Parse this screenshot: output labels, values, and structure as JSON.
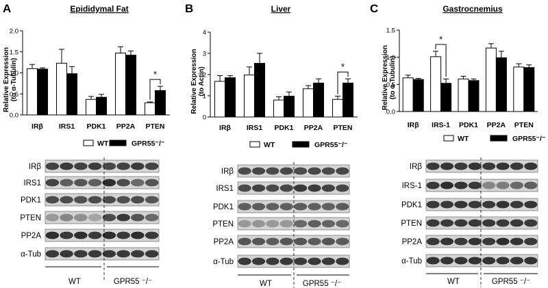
{
  "legend": {
    "wt": "WT",
    "ko": "GPR55⁻/⁻",
    "wt_color": "#ffffff",
    "ko_color": "#000000"
  },
  "chart_data": [
    {
      "type": "bar",
      "letter": "A",
      "title": "Epididymal Fat",
      "ylabel": [
        "Relative Expression",
        "(to α-Tubulin)"
      ],
      "ylim": [
        0,
        2.0
      ],
      "yticks": [
        "0.0",
        "0.5",
        "1.0",
        "1.5",
        "2.0"
      ],
      "categories": [
        "IRβ",
        "IRS1",
        "PDK1",
        "PP2A",
        "PTEN"
      ],
      "series": [
        {
          "name": "WT",
          "values": [
            1.1,
            1.23,
            0.37,
            1.47,
            0.29
          ],
          "errors": [
            0.1,
            0.33,
            0.07,
            0.15,
            0.02
          ]
        },
        {
          "name": "GPR55⁻/⁻",
          "values": [
            1.09,
            0.98,
            0.42,
            1.42,
            0.58
          ],
          "errors": [
            0.03,
            0.17,
            0.07,
            0.1,
            0.1
          ]
        }
      ],
      "significance": [
        {
          "category": "PTEN",
          "label": "*"
        }
      ],
      "blot": {
        "rows": [
          "IRβ",
          "IRS1",
          "PDK1",
          "PTEN",
          "PP2A",
          "α-Tub"
        ],
        "groups": [
          "WT",
          "GPR55 ⁻/⁻"
        ],
        "intensities": [
          [
            0.75,
            0.8,
            0.75,
            0.78,
            0.72,
            0.75,
            0.78,
            0.74
          ],
          [
            0.75,
            0.6,
            0.65,
            0.6,
            0.85,
            0.7,
            0.55,
            0.65
          ],
          [
            0.7,
            0.7,
            0.68,
            0.7,
            0.7,
            0.68,
            0.7,
            0.65
          ],
          [
            0.3,
            0.4,
            0.35,
            0.25,
            0.7,
            0.8,
            0.65,
            0.55
          ],
          [
            0.85,
            0.8,
            0.85,
            0.8,
            0.85,
            0.8,
            0.85,
            0.8
          ],
          [
            0.8,
            0.8,
            0.8,
            0.8,
            0.8,
            0.8,
            0.8,
            0.8
          ]
        ]
      }
    },
    {
      "type": "bar",
      "letter": "B",
      "title": "Liver",
      "ylabel": [
        "Relative Expression",
        "(to Actin)"
      ],
      "ylim": [
        0,
        4
      ],
      "yticks": [
        "0",
        "1",
        "2",
        "3",
        "4"
      ],
      "categories": [
        "IRβ",
        "IRS1",
        "PDK1",
        "PP2A",
        "PTEN"
      ],
      "series": [
        {
          "name": "WT",
          "values": [
            1.68,
            1.98,
            0.8,
            1.33,
            0.83
          ],
          "errors": [
            0.27,
            0.38,
            0.15,
            0.15,
            0.15
          ]
        },
        {
          "name": "GPR55⁻/⁻",
          "values": [
            1.85,
            2.53,
            0.98,
            1.6,
            1.6
          ],
          "errors": [
            0.1,
            0.47,
            0.2,
            0.2,
            0.2
          ]
        }
      ],
      "significance": [
        {
          "category": "PTEN",
          "label": "*"
        }
      ],
      "blot": {
        "rows": [
          "IRβ",
          "IRS1",
          "PDK1",
          "PTEN",
          "PP2A",
          "α-Tub"
        ],
        "groups": [
          "WT",
          "GPR55 ⁻/⁻"
        ],
        "intensities": [
          [
            0.7,
            0.72,
            0.7,
            0.72,
            0.7,
            0.72,
            0.7,
            0.72
          ],
          [
            0.7,
            0.75,
            0.7,
            0.72,
            0.8,
            0.78,
            0.75,
            0.72
          ],
          [
            0.6,
            0.62,
            0.6,
            0.6,
            0.62,
            0.6,
            0.6,
            0.62
          ],
          [
            0.3,
            0.32,
            0.3,
            0.3,
            0.55,
            0.6,
            0.58,
            0.55
          ],
          [
            0.65,
            0.65,
            0.62,
            0.65,
            0.65,
            0.62,
            0.65,
            0.62
          ],
          [
            0.8,
            0.8,
            0.8,
            0.8,
            0.8,
            0.8,
            0.8,
            0.8
          ]
        ]
      }
    },
    {
      "type": "bar",
      "letter": "C",
      "title": "Gastrocnemius",
      "ylabel": [
        "Relative Expression",
        "(to α-Tubulin)"
      ],
      "ylim": [
        0,
        1.5
      ],
      "yticks": [
        "0.0",
        "0.5",
        "1.0",
        "1.5"
      ],
      "categories": [
        "IRβ",
        "IRS-1",
        "PDK1",
        "PP2A",
        "PTEN"
      ],
      "series": [
        {
          "name": "WT",
          "values": [
            0.62,
            1.01,
            0.6,
            1.17,
            0.82
          ],
          "errors": [
            0.05,
            0.1,
            0.05,
            0.08,
            0.06
          ]
        },
        {
          "name": "GPR55⁻/⁻",
          "values": [
            0.59,
            0.52,
            0.57,
            0.99,
            0.81
          ],
          "errors": [
            0.02,
            0.08,
            0.03,
            0.12,
            0.05
          ]
        }
      ],
      "significance": [
        {
          "category": "IRS-1",
          "label": "*"
        }
      ],
      "blot": {
        "rows": [
          "IRβ",
          "IRS-1",
          "PDK1",
          "PTEN",
          "PP2A",
          "α-Tub"
        ],
        "groups": [
          "WT",
          "GPR55 ⁻/⁻"
        ],
        "intensities": [
          [
            0.8,
            0.82,
            0.8,
            0.82,
            0.8,
            0.82,
            0.8,
            0.82
          ],
          [
            0.8,
            0.85,
            0.82,
            0.8,
            0.4,
            0.45,
            0.55,
            0.6
          ],
          [
            0.8,
            0.8,
            0.82,
            0.8,
            0.8,
            0.82,
            0.8,
            0.82
          ],
          [
            0.8,
            0.8,
            0.8,
            0.8,
            0.8,
            0.8,
            0.8,
            0.8
          ],
          [
            0.8,
            0.82,
            0.8,
            0.82,
            0.8,
            0.85,
            0.82,
            0.8
          ],
          [
            0.82,
            0.82,
            0.82,
            0.82,
            0.82,
            0.82,
            0.82,
            0.82
          ]
        ]
      }
    }
  ]
}
